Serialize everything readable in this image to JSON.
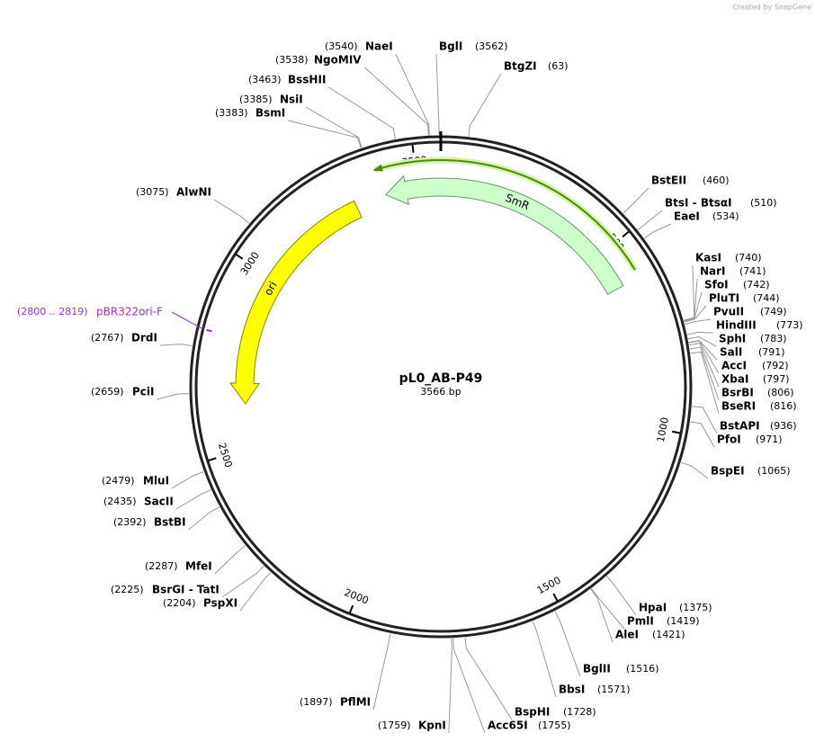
{
  "header": {
    "credit": "Created by SnapGene"
  },
  "map": {
    "title": "pL0_AB-P49",
    "length": {
      "value": 3566,
      "label": "3566 bp"
    },
    "ticks": [
      500,
      1000,
      1500,
      2000,
      2500,
      3000,
      3500
    ],
    "features": [
      {
        "name": "SmR"
      },
      {
        "name": "ori"
      }
    ],
    "primer": {
      "name": "pBR322ori-F",
      "range": {
        "start": 2800,
        "end": 2819,
        "label": "(2800 .. 2819)"
      }
    },
    "enzymes": [
      {
        "name": "NaeI",
        "position": {
          "value": 3540,
          "label": "(3540)"
        }
      },
      {
        "name": "NgoMIV",
        "position": {
          "value": 3538,
          "label": "(3538)"
        }
      },
      {
        "name": "BssHII",
        "position": {
          "value": 3463,
          "label": "(3463)"
        }
      },
      {
        "name": "NsiI",
        "position": {
          "value": 3385,
          "label": "(3385)"
        }
      },
      {
        "name": "BsmI",
        "position": {
          "value": 3383,
          "label": "(3383)"
        }
      },
      {
        "name": "BglI",
        "position": {
          "value": 3562,
          "label": "(3562)"
        }
      },
      {
        "name": "BtgZI",
        "position": {
          "value": 63,
          "label": "(63)"
        }
      },
      {
        "name": "AlwNI",
        "position": {
          "value": 3075,
          "label": "(3075)"
        }
      },
      {
        "name": "DrdI",
        "position": {
          "value": 2767,
          "label": "(2767)"
        }
      },
      {
        "name": "PciI",
        "position": {
          "value": 2659,
          "label": "(2659)"
        }
      },
      {
        "name": "MluI",
        "position": {
          "value": 2479,
          "label": "(2479)"
        }
      },
      {
        "name": "SacII",
        "position": {
          "value": 2435,
          "label": "(2435)"
        }
      },
      {
        "name": "BstBI",
        "position": {
          "value": 2392,
          "label": "(2392)"
        }
      },
      {
        "name": "MfeI",
        "position": {
          "value": 2287,
          "label": "(2287)"
        }
      },
      {
        "name": "BsrGI - TatI",
        "position": {
          "value": 2225,
          "label": "(2225)"
        }
      },
      {
        "name": "PspXI",
        "position": {
          "value": 2204,
          "label": "(2204)"
        }
      },
      {
        "name": "PflMI",
        "position": {
          "value": 1897,
          "label": "(1897)"
        }
      },
      {
        "name": "KpnI",
        "position": {
          "value": 1759,
          "label": "(1759)"
        }
      },
      {
        "name": "Acc65I",
        "position": {
          "value": 1755,
          "label": "(1755)"
        }
      },
      {
        "name": "BspHI",
        "position": {
          "value": 1728,
          "label": "(1728)"
        }
      },
      {
        "name": "BbsI",
        "position": {
          "value": 1571,
          "label": "(1571)"
        }
      },
      {
        "name": "BglII",
        "position": {
          "value": 1516,
          "label": "(1516)"
        }
      },
      {
        "name": "AleI",
        "position": {
          "value": 1421,
          "label": "(1421)"
        }
      },
      {
        "name": "PmlI",
        "position": {
          "value": 1419,
          "label": "(1419)"
        }
      },
      {
        "name": "HpaI",
        "position": {
          "value": 1375,
          "label": "(1375)"
        }
      },
      {
        "name": "BspEI",
        "position": {
          "value": 1065,
          "label": "(1065)"
        }
      },
      {
        "name": "PfoI",
        "position": {
          "value": 971,
          "label": "(971)"
        }
      },
      {
        "name": "BstAPI",
        "position": {
          "value": 936,
          "label": "(936)"
        }
      },
      {
        "name": "BseRI",
        "position": {
          "value": 816,
          "label": "(816)"
        }
      },
      {
        "name": "BsrBI",
        "position": {
          "value": 806,
          "label": "(806)"
        }
      },
      {
        "name": "XbaI",
        "position": {
          "value": 797,
          "label": "(797)"
        }
      },
      {
        "name": "AccI",
        "position": {
          "value": 792,
          "label": "(792)"
        }
      },
      {
        "name": "SalI",
        "position": {
          "value": 791,
          "label": "(791)"
        }
      },
      {
        "name": "SphI",
        "position": {
          "value": 783,
          "label": "(783)"
        }
      },
      {
        "name": "HindIII",
        "position": {
          "value": 773,
          "label": "(773)"
        }
      },
      {
        "name": "PvuII",
        "position": {
          "value": 749,
          "label": "(749)"
        }
      },
      {
        "name": "PluTI",
        "position": {
          "value": 744,
          "label": "(744)"
        }
      },
      {
        "name": "SfoI",
        "position": {
          "value": 742,
          "label": "(742)"
        }
      },
      {
        "name": "NarI",
        "position": {
          "value": 741,
          "label": "(741)"
        }
      },
      {
        "name": "KasI",
        "position": {
          "value": 740,
          "label": "(740)"
        }
      },
      {
        "name": "EaeI",
        "position": {
          "value": 534,
          "label": "(534)"
        }
      },
      {
        "name": "BtsI - BtsαI",
        "position": {
          "value": 510,
          "label": "(510)"
        }
      },
      {
        "name": "BstEII",
        "position": {
          "value": 460,
          "label": "(460)"
        }
      }
    ]
  }
}
